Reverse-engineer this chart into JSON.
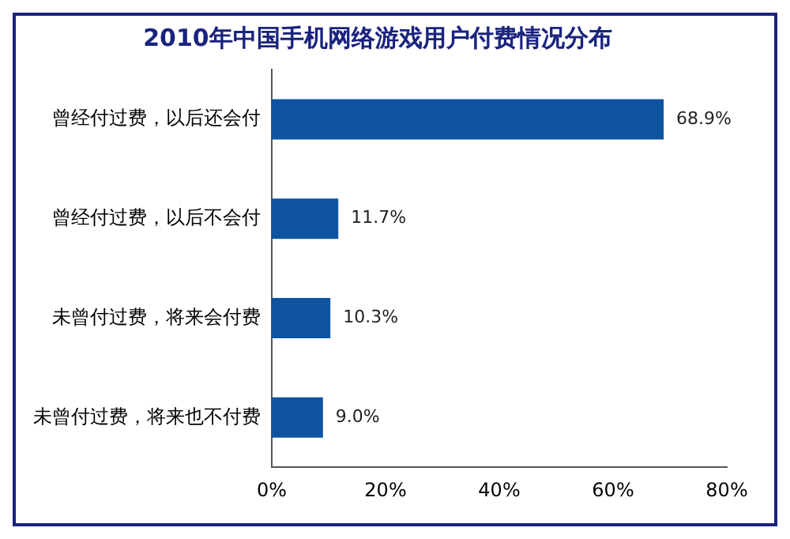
{
  "chart_data": {
    "type": "bar",
    "orientation": "horizontal",
    "title": "2010年中国手机网络游戏用户付费情况分布",
    "categories": [
      "曾经付过费，以后还会付",
      "曾经付过费，以后不会付",
      "未曾付过费，将来会付费",
      "未曾付过费，将来也不付费"
    ],
    "values": [
      68.9,
      11.7,
      10.3,
      9.0
    ],
    "value_labels": [
      "68.9%",
      "11.7%",
      "10.3%",
      "9.0%"
    ],
    "color": "#0d53a0",
    "xlim": [
      0,
      80
    ],
    "xticks": [
      {
        "value": 0,
        "label": "0%"
      },
      {
        "value": 20,
        "label": "20%"
      },
      {
        "value": 40,
        "label": "40%"
      },
      {
        "value": 60,
        "label": "60%"
      },
      {
        "value": 80,
        "label": "80%"
      }
    ],
    "grid": false,
    "legend": false
  }
}
